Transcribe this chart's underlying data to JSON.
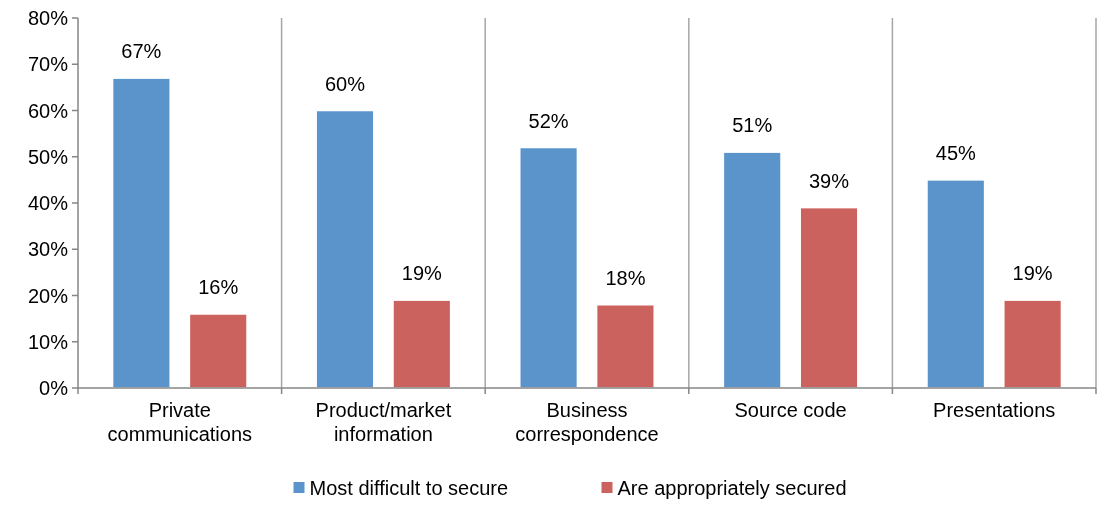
{
  "chart_data": {
    "type": "bar",
    "categories": [
      "Private communications",
      "Product/market information",
      "Business correspondence",
      "Source code",
      "Presentations"
    ],
    "series": [
      {
        "name": "Most difficult to secure",
        "color": "#5b94cb",
        "values": [
          67,
          60,
          52,
          51,
          45
        ],
        "value_labels": [
          "67%",
          "60%",
          "52%",
          "51%",
          "45%"
        ]
      },
      {
        "name": "Are appropriately secured",
        "color": "#cc625e",
        "values": [
          16,
          19,
          18,
          39,
          19
        ],
        "value_labels": [
          "16%",
          "19%",
          "18%",
          "39%",
          "19%"
        ]
      }
    ],
    "ylim": [
      0,
      80
    ],
    "yticks": [
      {
        "value": 0,
        "label": "0%"
      },
      {
        "value": 10,
        "label": "10%"
      },
      {
        "value": 20,
        "label": "20%"
      },
      {
        "value": 30,
        "label": "30%"
      },
      {
        "value": 40,
        "label": "40%"
      },
      {
        "value": 50,
        "label": "50%"
      },
      {
        "value": 60,
        "label": "60%"
      },
      {
        "value": 70,
        "label": "70%"
      },
      {
        "value": 80,
        "label": "80%"
      }
    ],
    "grid": "x",
    "legend": "bottom"
  }
}
